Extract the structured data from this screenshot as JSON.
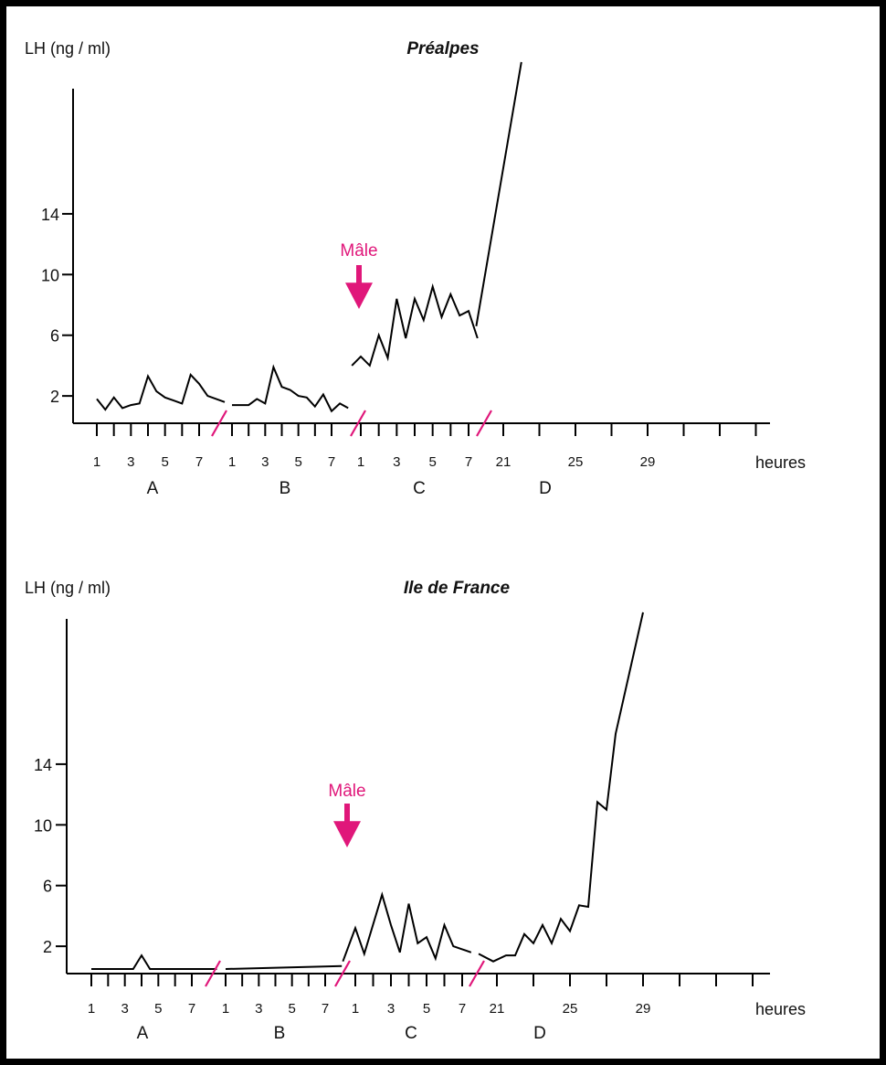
{
  "chart_data": [
    {
      "type": "line",
      "title": "Préalpes",
      "ylabel": "LH (ng / ml)",
      "xlabel": "heures",
      "yticks": [
        2,
        6,
        10,
        14
      ],
      "annotation": "Mâle",
      "segments": [
        {
          "name": "A",
          "tick_labels": [
            "1",
            "3",
            "5",
            "7"
          ],
          "x": [
            1,
            1.5,
            2,
            2.5,
            3,
            3.5,
            4,
            4.5,
            5,
            5.5,
            6,
            6.5,
            7,
            7.5,
            8,
            8.5
          ],
          "y": [
            1.8,
            1.1,
            1.9,
            1.2,
            1.4,
            1.5,
            3.3,
            2.3,
            1.9,
            1.7,
            1.5,
            3.4,
            2.8,
            2.0,
            1.8,
            1.6
          ]
        },
        {
          "name": "B",
          "tick_labels": [
            "1",
            "3",
            "5",
            "7"
          ],
          "x": [
            1,
            1.5,
            2,
            2.5,
            3,
            3.5,
            4,
            4.5,
            5,
            5.5,
            6,
            6.5,
            7,
            7.5,
            8
          ],
          "y": [
            1.4,
            1.4,
            1.4,
            1.8,
            1.5,
            3.9,
            2.6,
            2.4,
            2.0,
            1.9,
            1.3,
            2.1,
            1.0,
            1.5,
            1.2
          ]
        },
        {
          "name": "C",
          "tick_labels": [
            "1",
            "3",
            "5",
            "7"
          ],
          "x": [
            0.5,
            1,
            1.5,
            2,
            2.5,
            3,
            3.5,
            4,
            4.5,
            5,
            5.5,
            6,
            6.5,
            7,
            7.5
          ],
          "y": [
            4.0,
            4.6,
            4.0,
            6.0,
            4.5,
            8.4,
            5.8,
            8.4,
            7.0,
            9.2,
            7.2,
            8.7,
            7.3,
            7.6,
            5.8
          ]
        },
        {
          "name": "D",
          "tick_labels": [
            "21",
            "25",
            "29"
          ],
          "x": [
            19.5,
            22
          ],
          "y": [
            6.6,
            24
          ]
        }
      ]
    },
    {
      "type": "line",
      "title": "Ile de France",
      "ylabel": "LH (ng / ml)",
      "xlabel": "heures",
      "yticks": [
        2,
        6,
        10,
        14
      ],
      "annotation": "Mâle",
      "segments": [
        {
          "name": "A",
          "tick_labels": [
            "1",
            "3",
            "5",
            "7"
          ],
          "x": [
            1,
            3.5,
            4,
            4.5,
            8.5
          ],
          "y": [
            0.5,
            0.5,
            1.4,
            0.5,
            0.5
          ]
        },
        {
          "name": "B",
          "tick_labels": [
            "1",
            "3",
            "5",
            "7"
          ],
          "x": [
            1,
            8
          ],
          "y": [
            0.5,
            0.7
          ]
        },
        {
          "name": "C",
          "tick_labels": [
            "1",
            "3",
            "5",
            "7"
          ],
          "x": [
            0.3,
            1,
            1.5,
            2.5,
            3,
            3.5,
            4,
            4.5,
            5,
            5.5,
            6,
            6.5,
            7,
            7.5
          ],
          "y": [
            1.0,
            3.2,
            1.5,
            5.4,
            3.4,
            1.6,
            4.8,
            2.2,
            2.6,
            1.2,
            3.4,
            2.0,
            1.8,
            1.6
          ]
        },
        {
          "name": "D",
          "tick_labels": [
            "21",
            "25",
            "29"
          ],
          "x": [
            20,
            20.8,
            21.5,
            22,
            22.5,
            23,
            23.5,
            24,
            24.5,
            25,
            25.5,
            26,
            26.5,
            27,
            27.5,
            29
          ],
          "y": [
            1.5,
            1.0,
            1.4,
            1.4,
            2.8,
            2.2,
            3.4,
            2.2,
            3.8,
            3.0,
            4.7,
            4.6,
            11.5,
            11.0,
            16.0,
            24.0
          ]
        }
      ]
    }
  ]
}
